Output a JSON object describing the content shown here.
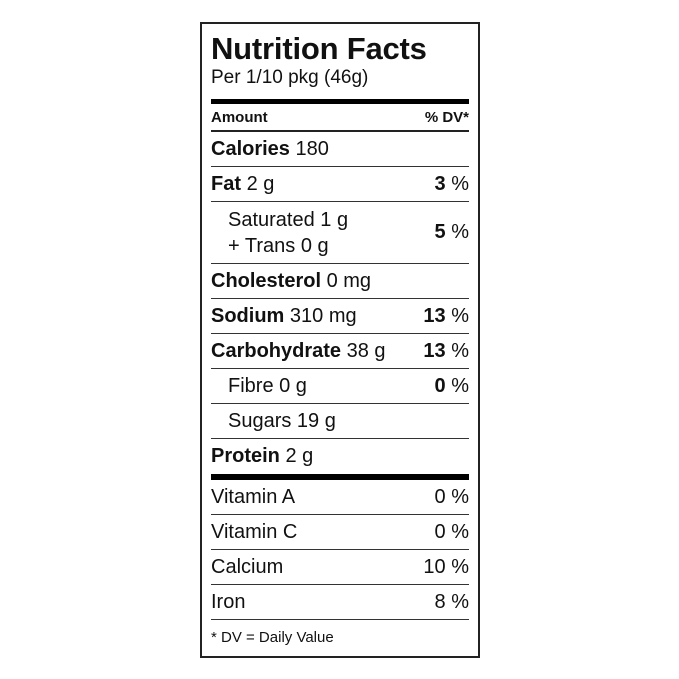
{
  "title": "Nutrition Facts",
  "serving": "Per 1/10 pkg (46g)",
  "header": {
    "amount": "Amount",
    "dv": "% DV*"
  },
  "calories": {
    "label": "Calories",
    "value": "180"
  },
  "nutrients": [
    {
      "label": "Fat",
      "amount": "2 g",
      "dv_num": "3",
      "dv_unit": "%",
      "bold": true
    },
    {
      "label": "Saturated 1 g",
      "label2": "+ Trans 0 g",
      "dv_num": "5",
      "dv_unit": "%",
      "bold": false
    },
    {
      "label": "Cholesterol",
      "amount": "0 mg",
      "bold": true
    },
    {
      "label": "Sodium",
      "amount": "310 mg",
      "dv_num": "13",
      "dv_unit": "%",
      "bold": true
    },
    {
      "label": "Carbohydrate",
      "amount": "38 g",
      "dv_num": "13",
      "dv_unit": "%",
      "bold": true
    },
    {
      "label": "Fibre 0 g",
      "dv_num": "0",
      "dv_unit": "%",
      "bold": false
    },
    {
      "label": "Sugars 19 g",
      "bold": false
    },
    {
      "label": "Protein",
      "amount": "2 g",
      "bold": true
    }
  ],
  "vitamins": [
    {
      "label": "Vitamin A",
      "dv": "0 %"
    },
    {
      "label": "Vitamin C",
      "dv": "0 %"
    },
    {
      "label": "Calcium",
      "dv": "10 %"
    },
    {
      "label": "Iron",
      "dv": "8 %"
    }
  ],
  "footnote": "* DV = Daily Value"
}
